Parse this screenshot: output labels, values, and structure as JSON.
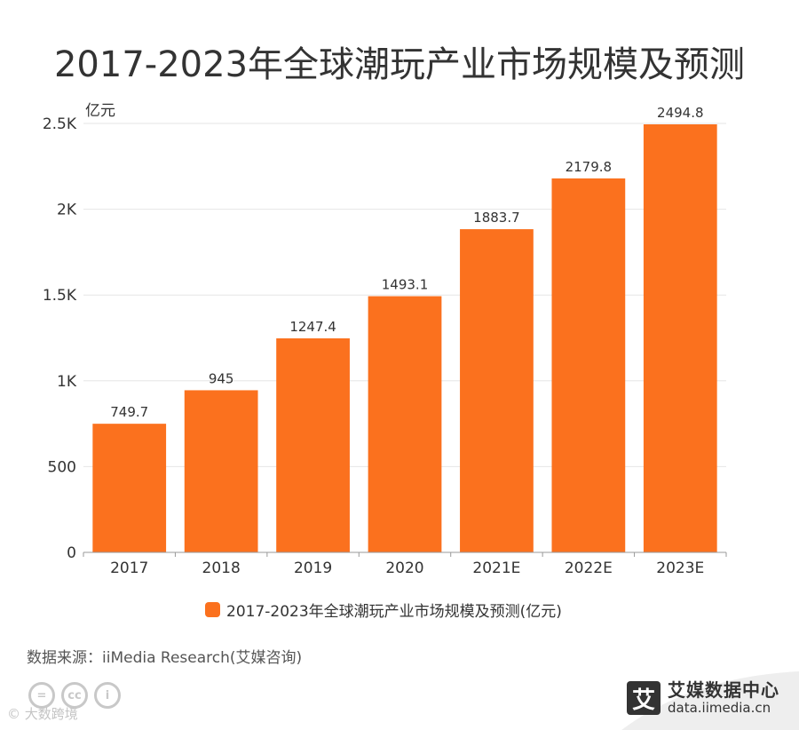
{
  "title": "2017-2023年全球潮玩产业市场规模及预测",
  "colors": {
    "bar": "#fb711e",
    "grid": "#e6e6e6",
    "axis": "#999999",
    "text": "#333333"
  },
  "chart_data": {
    "type": "bar",
    "title": "2017-2023年全球潮玩产业市场规模及预测",
    "ylabel": "亿元",
    "xlabel": "",
    "categories": [
      "2017",
      "2018",
      "2019",
      "2020",
      "2021E",
      "2022E",
      "2023E"
    ],
    "series": [
      {
        "name": "2017-2023年全球潮玩产业市场规模及预测(亿元)",
        "values": [
          749.7,
          945,
          1247.4,
          1493.1,
          1883.7,
          2179.8,
          2494.8
        ]
      }
    ],
    "value_labels": [
      "749.7",
      "945",
      "1247.4",
      "1493.1",
      "1883.7",
      "2179.8",
      "2494.8"
    ],
    "ylim": [
      0,
      2500
    ],
    "yticks": [
      0,
      500,
      1000,
      1500,
      2000,
      2500
    ],
    "ytick_labels": [
      "0",
      "500",
      "1K",
      "1.5K",
      "2K",
      "2.5K"
    ],
    "grid": true,
    "legend_position": "bottom-center"
  },
  "legend": {
    "label": "2017-2023年全球潮玩产业市场规模及预测(亿元)"
  },
  "source": "数据来源：iiMedia Research(艾媒咨询)",
  "license_icons": [
    {
      "icon": "equals-icon",
      "glyph": "="
    },
    {
      "icon": "cc-icon",
      "glyph": "cc"
    },
    {
      "icon": "person-icon",
      "glyph": "i"
    }
  ],
  "watermark": "© 大数跨境",
  "brand": {
    "badge": "艾",
    "name": "艾媒数据中心",
    "url": "data.iimedia.cn"
  }
}
